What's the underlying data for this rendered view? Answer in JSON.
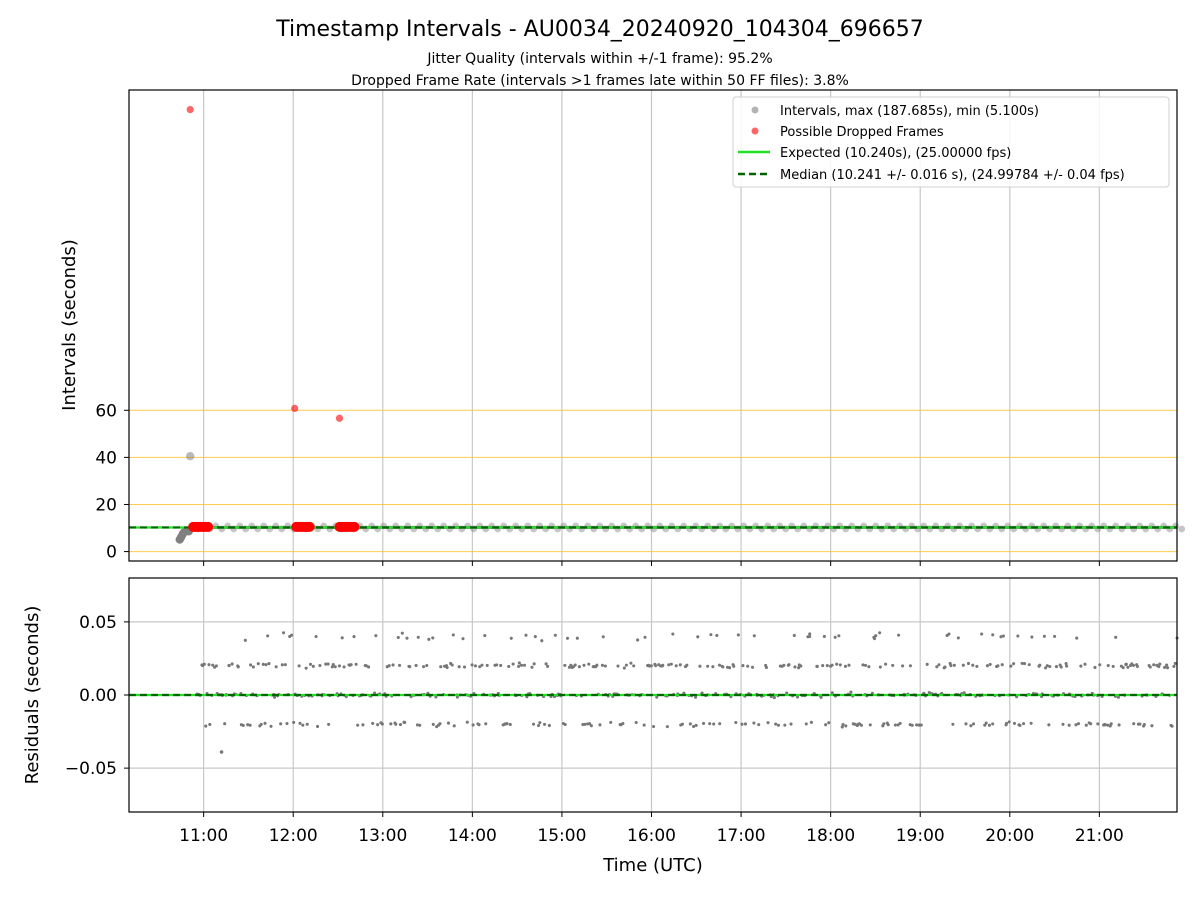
{
  "chart_data": [
    {
      "type": "scatter",
      "title": "Timestamp Intervals - AU0034_20240920_104304_696657",
      "subtitle_lines": [
        "Jitter Quality (intervals within +/-1 frame): 95.2%",
        "Dropped Frame Rate (intervals >1 frames late within 50 FF files): 3.8%"
      ],
      "xlabel": "",
      "ylabel": "Intervals (seconds)",
      "xlim": [
        "10:10",
        "21:52"
      ],
      "ylim": [
        -4,
        196
      ],
      "y_ticks": [
        0,
        20,
        40,
        60
      ],
      "y_tick_labels": [
        "0",
        "20",
        "40",
        "60"
      ],
      "reference_lines": [
        {
          "value": 0,
          "color": "#ffc233"
        },
        {
          "value": 20,
          "color": "#ffc233"
        },
        {
          "value": 40,
          "color": "#ffc233"
        },
        {
          "value": 60,
          "color": "#ffc233"
        }
      ],
      "grid": "vertical",
      "legend_position": "top-right",
      "series": [
        {
          "name": "Intervals, max (187.685s), min (5.100s)",
          "color": "#808080",
          "points": [
            {
              "x": "10:44",
              "y": 5.1
            },
            {
              "x": "10:45",
              "y": 6.2
            },
            {
              "x": "10:46",
              "y": 7.4
            },
            {
              "x": "10:47",
              "y": 8.3
            },
            {
              "x": "10:48",
              "y": 8.8
            },
            {
              "x": "10:50",
              "y": 8.6
            },
            {
              "x": "10:51",
              "y": 40.5
            }
          ],
          "band": {
            "x_start": "10:52",
            "x_end": "21:52",
            "y_low": 9.6,
            "y_high": 10.9
          }
        },
        {
          "name": "Possible Dropped Frames",
          "color": "#ff0000",
          "points": [
            {
              "x": "10:51",
              "y": 187.685
            },
            {
              "x": "12:01",
              "y": 60.8
            },
            {
              "x": "12:31",
              "y": 56.6
            },
            {
              "x": "10:53",
              "y": 10.5
            },
            {
              "x": "10:54",
              "y": 10.5
            },
            {
              "x": "10:55",
              "y": 10.5
            },
            {
              "x": "10:56",
              "y": 10.5
            },
            {
              "x": "10:57",
              "y": 10.5
            },
            {
              "x": "10:58",
              "y": 10.5
            },
            {
              "x": "10:59",
              "y": 10.5
            },
            {
              "x": "11:00",
              "y": 10.5
            },
            {
              "x": "11:01",
              "y": 10.5
            },
            {
              "x": "11:02",
              "y": 10.5
            },
            {
              "x": "11:03",
              "y": 10.5
            },
            {
              "x": "12:02",
              "y": 10.5
            },
            {
              "x": "12:03",
              "y": 10.5
            },
            {
              "x": "12:04",
              "y": 10.5
            },
            {
              "x": "12:05",
              "y": 10.5
            },
            {
              "x": "12:06",
              "y": 10.5
            },
            {
              "x": "12:07",
              "y": 10.5
            },
            {
              "x": "12:08",
              "y": 10.5
            },
            {
              "x": "12:09",
              "y": 10.5
            },
            {
              "x": "12:10",
              "y": 10.5
            },
            {
              "x": "12:11",
              "y": 10.5
            },
            {
              "x": "12:31",
              "y": 10.5
            },
            {
              "x": "12:32",
              "y": 10.5
            },
            {
              "x": "12:33",
              "y": 10.5
            },
            {
              "x": "12:34",
              "y": 10.5
            },
            {
              "x": "12:35",
              "y": 10.5
            },
            {
              "x": "12:36",
              "y": 10.5
            },
            {
              "x": "12:37",
              "y": 10.5
            },
            {
              "x": "12:38",
              "y": 10.5
            },
            {
              "x": "12:39",
              "y": 10.5
            },
            {
              "x": "12:40",
              "y": 10.5
            },
            {
              "x": "12:41",
              "y": 10.5
            }
          ]
        },
        {
          "name": "Expected (10.240s), (25.00000 fps)",
          "color": "#22e022",
          "style": "solid",
          "value": 10.24
        },
        {
          "name": "Median (10.241 +/- 0.016 s), (24.99784 +/- 0.04 fps)",
          "color": "#006400",
          "style": "dashed",
          "value": 10.241
        }
      ]
    },
    {
      "type": "scatter",
      "xlabel": "Time (UTC)",
      "ylabel": "Residuals (seconds)",
      "xlim": [
        "10:10",
        "21:52"
      ],
      "ylim": [
        -0.08,
        0.08
      ],
      "x_ticks": [
        "11:00",
        "12:00",
        "13:00",
        "14:00",
        "15:00",
        "16:00",
        "17:00",
        "18:00",
        "19:00",
        "20:00",
        "21:00"
      ],
      "y_ticks": [
        0.05,
        0.0,
        -0.05
      ],
      "y_tick_labels": [
        "0.05",
        "0.00",
        "−0.05"
      ],
      "grid": "both",
      "series": [
        {
          "color": "#777777",
          "x_start": "10:55",
          "x_end": "21:52",
          "levels": [
            {
              "value": 0.04,
              "share": 0.1
            },
            {
              "value": 0.02,
              "share": 0.35
            },
            {
              "value": 0.0,
              "share": 0.35
            },
            {
              "value": -0.02,
              "share": 0.2
            }
          ],
          "outliers": [
            {
              "x": "11:12",
              "y": -0.039
            }
          ]
        },
        {
          "color": "#22e022",
          "style": "solid",
          "value": 0.0
        },
        {
          "color": "#006400",
          "style": "dashed",
          "value": 0.0
        }
      ]
    }
  ]
}
